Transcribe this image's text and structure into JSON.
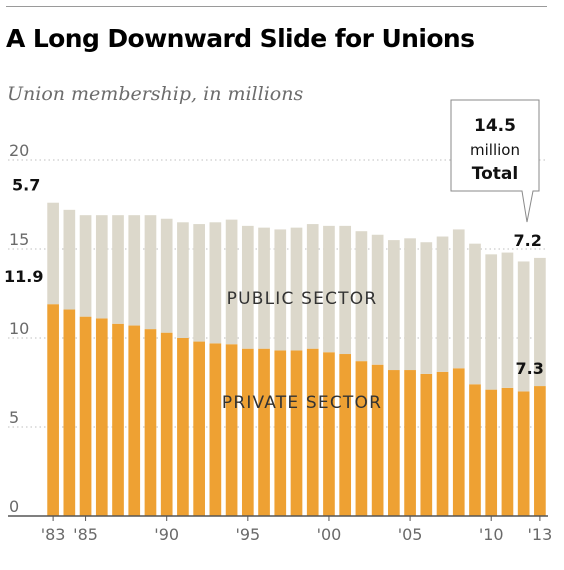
{
  "title": "A Long Downward Slide for Unions",
  "subtitle": "Union membership, in millions",
  "colors": {
    "private": "#eea133",
    "public": "#dcd8cb",
    "grid": "#bfbfbf",
    "axis": "#555555"
  },
  "chart_data": {
    "type": "bar",
    "stacked": true,
    "categories": [
      "'83",
      "'84",
      "'85",
      "'86",
      "'87",
      "'88",
      "'89",
      "'90",
      "'91",
      "'92",
      "'93",
      "'94",
      "'95",
      "'96",
      "'97",
      "'98",
      "'99",
      "'00",
      "'01",
      "'02",
      "'03",
      "'04",
      "'05",
      "'06",
      "'07",
      "'08",
      "'09",
      "'10",
      "'11",
      "'12",
      "'13"
    ],
    "x_tick_labels": [
      "'83",
      "'85",
      "'90",
      "'95",
      "'00",
      "'05",
      "'10",
      "'13"
    ],
    "x_tick_categories": [
      "'83",
      "'85",
      "'90",
      "'95",
      "'00",
      "'05",
      "'10",
      "'13"
    ],
    "series": [
      {
        "name": "PRIVATE SECTOR",
        "values": [
          11.9,
          11.6,
          11.2,
          11.1,
          10.8,
          10.7,
          10.5,
          10.3,
          10.0,
          9.8,
          9.7,
          9.65,
          9.4,
          9.4,
          9.3,
          9.3,
          9.4,
          9.2,
          9.1,
          8.7,
          8.5,
          8.2,
          8.2,
          7.98,
          8.1,
          8.3,
          7.4,
          7.1,
          7.2,
          7.0,
          7.3
        ]
      },
      {
        "name": "PUBLIC SECTOR",
        "values": [
          5.7,
          5.6,
          5.7,
          5.8,
          6.1,
          6.2,
          6.4,
          6.4,
          6.5,
          6.6,
          6.8,
          7.0,
          6.9,
          6.8,
          6.8,
          6.9,
          7.0,
          7.1,
          7.2,
          7.3,
          7.3,
          7.3,
          7.4,
          7.4,
          7.6,
          7.8,
          7.9,
          7.6,
          7.6,
          7.3,
          7.2
        ]
      }
    ],
    "ylim": [
      0,
      20
    ],
    "yticks": [
      0,
      5,
      10,
      15,
      20
    ],
    "grid": "dotted horizontal",
    "xlabel": "",
    "ylabel": "",
    "annotations": {
      "first_public": "5.7",
      "first_private": "11.9",
      "last_public": "7.2",
      "last_private": "7.3",
      "callout_value": "14.5",
      "callout_unit": "million",
      "callout_label": "Total"
    },
    "sector_labels": {
      "public": "PUBLIC SECTOR",
      "private": "PRIVATE SECTOR"
    }
  }
}
